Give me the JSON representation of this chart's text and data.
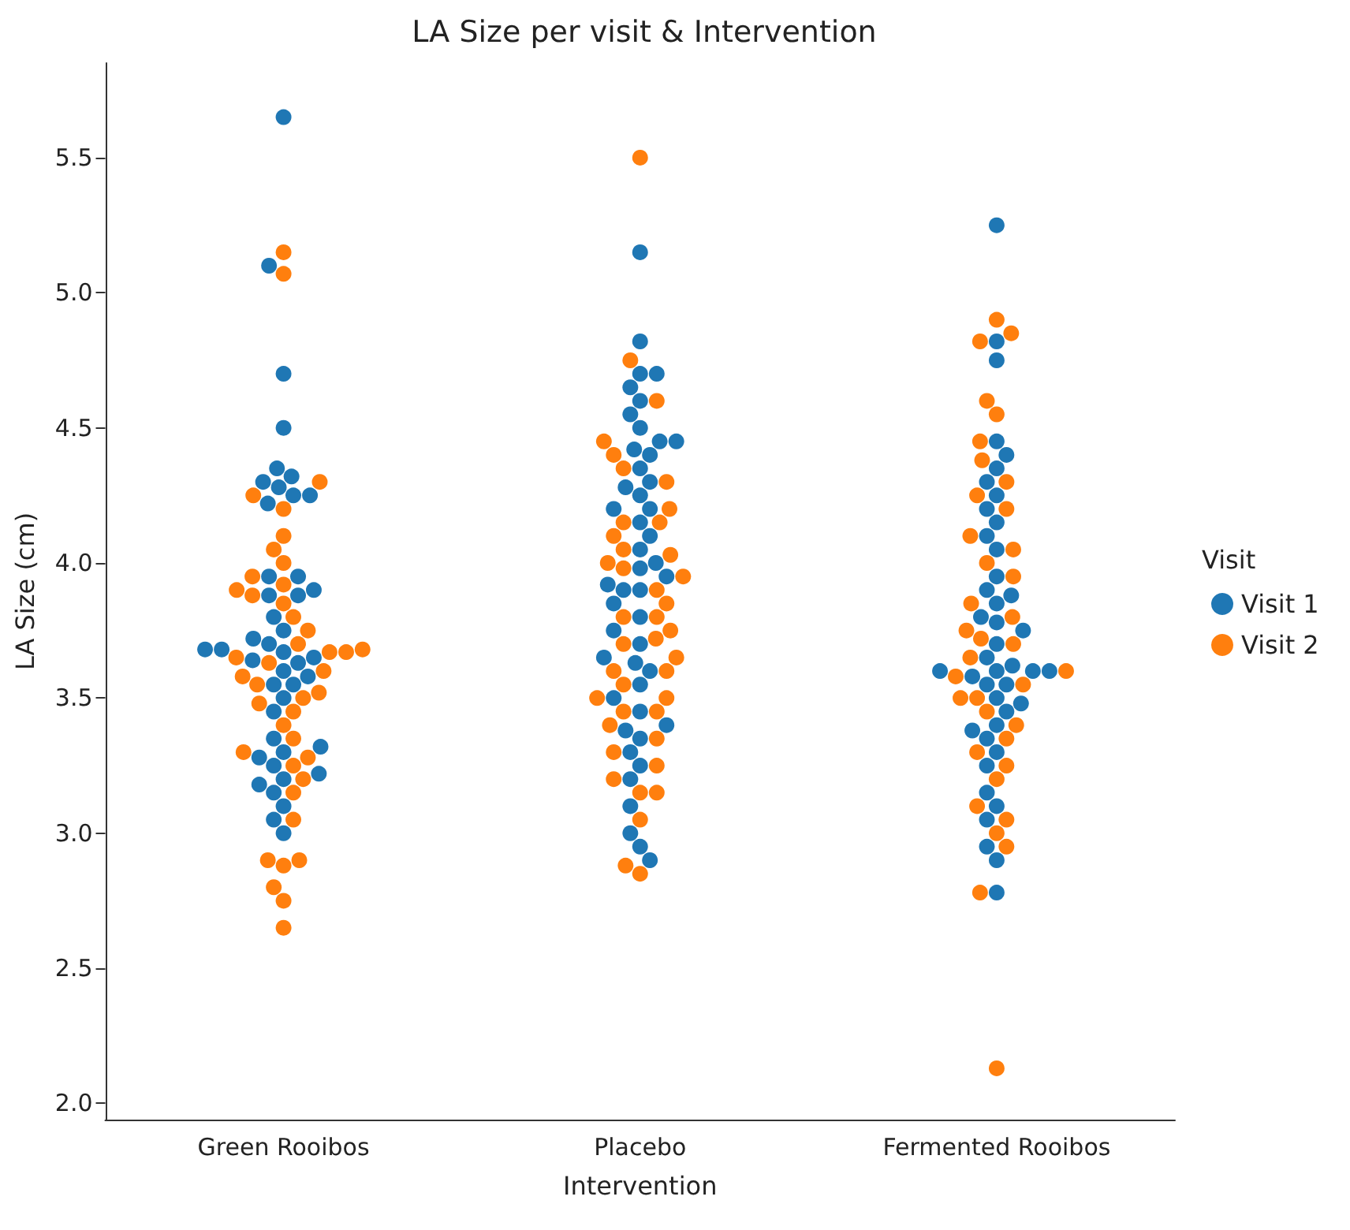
{
  "chart_data": {
    "type": "scatter",
    "title": "LA Size per visit & Intervention",
    "xlabel": "Intervention",
    "ylabel": "LA Size (cm)",
    "legend_title": "Visit",
    "legend": "right",
    "marker": "circle",
    "categories": [
      "Green Rooibos",
      "Placebo",
      "Fermented Rooibos"
    ],
    "ylim": [
      1.94,
      5.85
    ],
    "yticks": [
      {
        "value": 2,
        "label": "2.0"
      },
      {
        "value": 2.5,
        "label": "2.5"
      },
      {
        "value": 3,
        "label": "3.0"
      },
      {
        "value": 3.5,
        "label": "3.5"
      },
      {
        "value": 4,
        "label": "4.0"
      },
      {
        "value": 4.5,
        "label": "4.5"
      },
      {
        "value": 5,
        "label": "5.0"
      },
      {
        "value": 5.5,
        "label": "5.5"
      }
    ],
    "series": [
      {
        "name": "Visit 1",
        "color": "#1f77b4",
        "x": [
          "Green Rooibos",
          "Green Rooibos",
          "Green Rooibos",
          "Green Rooibos",
          "Green Rooibos",
          "Green Rooibos",
          "Green Rooibos",
          "Green Rooibos",
          "Green Rooibos",
          "Green Rooibos",
          "Green Rooibos",
          "Green Rooibos",
          "Green Rooibos",
          "Green Rooibos",
          "Green Rooibos",
          "Green Rooibos",
          "Green Rooibos",
          "Green Rooibos",
          "Green Rooibos",
          "Green Rooibos",
          "Green Rooibos",
          "Green Rooibos",
          "Green Rooibos",
          "Green Rooibos",
          "Green Rooibos",
          "Green Rooibos",
          "Green Rooibos",
          "Green Rooibos",
          "Green Rooibos",
          "Green Rooibos",
          "Green Rooibos",
          "Green Rooibos",
          "Green Rooibos",
          "Green Rooibos",
          "Green Rooibos",
          "Green Rooibos",
          "Green Rooibos",
          "Green Rooibos",
          "Green Rooibos",
          "Green Rooibos",
          "Green Rooibos",
          "Green Rooibos",
          "Green Rooibos",
          "Green Rooibos",
          "Placebo",
          "Placebo",
          "Placebo",
          "Placebo",
          "Placebo",
          "Placebo",
          "Placebo",
          "Placebo",
          "Placebo",
          "Placebo",
          "Placebo",
          "Placebo",
          "Placebo",
          "Placebo",
          "Placebo",
          "Placebo",
          "Placebo",
          "Placebo",
          "Placebo",
          "Placebo",
          "Placebo",
          "Placebo",
          "Placebo",
          "Placebo",
          "Placebo",
          "Placebo",
          "Placebo",
          "Placebo",
          "Placebo",
          "Placebo",
          "Placebo",
          "Placebo",
          "Placebo",
          "Placebo",
          "Placebo",
          "Placebo",
          "Placebo",
          "Placebo",
          "Placebo",
          "Placebo",
          "Placebo",
          "Placebo",
          "Placebo",
          "Placebo",
          "Placebo",
          "Placebo",
          "Placebo",
          "Fermented Rooibos",
          "Fermented Rooibos",
          "Fermented Rooibos",
          "Fermented Rooibos",
          "Fermented Rooibos",
          "Fermented Rooibos",
          "Fermented Rooibos",
          "Fermented Rooibos",
          "Fermented Rooibos",
          "Fermented Rooibos",
          "Fermented Rooibos",
          "Fermented Rooibos",
          "Fermented Rooibos",
          "Fermented Rooibos",
          "Fermented Rooibos",
          "Fermented Rooibos",
          "Fermented Rooibos",
          "Fermented Rooibos",
          "Fermented Rooibos",
          "Fermented Rooibos",
          "Fermented Rooibos",
          "Fermented Rooibos",
          "Fermented Rooibos",
          "Fermented Rooibos",
          "Fermented Rooibos",
          "Fermented Rooibos",
          "Fermented Rooibos",
          "Fermented Rooibos",
          "Fermented Rooibos",
          "Fermented Rooibos",
          "Fermented Rooibos",
          "Fermented Rooibos",
          "Fermented Rooibos",
          "Fermented Rooibos",
          "Fermented Rooibos",
          "Fermented Rooibos",
          "Fermented Rooibos",
          "Fermented Rooibos",
          "Fermented Rooibos",
          "Fermented Rooibos",
          "Fermented Rooibos",
          "Fermented Rooibos",
          "Fermented Rooibos"
        ],
        "values": [
          5.65,
          5.1,
          4.7,
          4.5,
          4.35,
          4.32,
          4.3,
          4.28,
          4.25,
          4.25,
          4.22,
          3.95,
          3.95,
          3.9,
          3.88,
          3.88,
          3.8,
          3.75,
          3.72,
          3.7,
          3.68,
          3.68,
          3.67,
          3.65,
          3.64,
          3.63,
          3.6,
          3.58,
          3.55,
          3.55,
          3.5,
          3.45,
          3.35,
          3.32,
          3.3,
          3.28,
          3.25,
          3.22,
          3.2,
          3.18,
          3.15,
          3.1,
          3.05,
          3.0,
          5.15,
          4.82,
          4.7,
          4.7,
          4.65,
          4.6,
          4.55,
          4.5,
          4.45,
          4.45,
          4.42,
          4.4,
          4.35,
          4.3,
          4.28,
          4.25,
          4.2,
          4.2,
          4.15,
          4.1,
          4.05,
          4.0,
          3.98,
          3.95,
          3.92,
          3.9,
          3.9,
          3.85,
          3.8,
          3.75,
          3.7,
          3.65,
          3.63,
          3.6,
          3.55,
          3.5,
          3.45,
          3.4,
          3.38,
          3.35,
          3.3,
          3.25,
          3.2,
          3.1,
          3.0,
          2.95,
          2.9,
          5.25,
          4.82,
          4.75,
          4.45,
          4.4,
          4.35,
          4.3,
          4.25,
          4.2,
          4.15,
          4.1,
          4.05,
          3.95,
          3.9,
          3.88,
          3.85,
          3.8,
          3.78,
          3.75,
          3.7,
          3.65,
          3.62,
          3.6,
          3.6,
          3.6,
          3.6,
          3.58,
          3.55,
          3.55,
          3.5,
          3.48,
          3.45,
          3.4,
          3.38,
          3.35,
          3.3,
          3.25,
          3.15,
          3.1,
          3.05,
          2.95,
          2.9,
          2.78
        ]
      },
      {
        "name": "Visit 2",
        "color": "#ff7f0e",
        "x": [
          "Green Rooibos",
          "Green Rooibos",
          "Green Rooibos",
          "Green Rooibos",
          "Green Rooibos",
          "Green Rooibos",
          "Green Rooibos",
          "Green Rooibos",
          "Green Rooibos",
          "Green Rooibos",
          "Green Rooibos",
          "Green Rooibos",
          "Green Rooibos",
          "Green Rooibos",
          "Green Rooibos",
          "Green Rooibos",
          "Green Rooibos",
          "Green Rooibos",
          "Green Rooibos",
          "Green Rooibos",
          "Green Rooibos",
          "Green Rooibos",
          "Green Rooibos",
          "Green Rooibos",
          "Green Rooibos",
          "Green Rooibos",
          "Green Rooibos",
          "Green Rooibos",
          "Green Rooibos",
          "Green Rooibos",
          "Green Rooibos",
          "Green Rooibos",
          "Green Rooibos",
          "Green Rooibos",
          "Green Rooibos",
          "Green Rooibos",
          "Green Rooibos",
          "Green Rooibos",
          "Green Rooibos",
          "Green Rooibos",
          "Green Rooibos",
          "Green Rooibos",
          "Placebo",
          "Placebo",
          "Placebo",
          "Placebo",
          "Placebo",
          "Placebo",
          "Placebo",
          "Placebo",
          "Placebo",
          "Placebo",
          "Placebo",
          "Placebo",
          "Placebo",
          "Placebo",
          "Placebo",
          "Placebo",
          "Placebo",
          "Placebo",
          "Placebo",
          "Placebo",
          "Placebo",
          "Placebo",
          "Placebo",
          "Placebo",
          "Placebo",
          "Placebo",
          "Placebo",
          "Placebo",
          "Placebo",
          "Placebo",
          "Placebo",
          "Placebo",
          "Placebo",
          "Placebo",
          "Placebo",
          "Placebo",
          "Placebo",
          "Placebo",
          "Placebo",
          "Placebo",
          "Placebo",
          "Fermented Rooibos",
          "Fermented Rooibos",
          "Fermented Rooibos",
          "Fermented Rooibos",
          "Fermented Rooibos",
          "Fermented Rooibos",
          "Fermented Rooibos",
          "Fermented Rooibos",
          "Fermented Rooibos",
          "Fermented Rooibos",
          "Fermented Rooibos",
          "Fermented Rooibos",
          "Fermented Rooibos",
          "Fermented Rooibos",
          "Fermented Rooibos",
          "Fermented Rooibos",
          "Fermented Rooibos",
          "Fermented Rooibos",
          "Fermented Rooibos",
          "Fermented Rooibos",
          "Fermented Rooibos",
          "Fermented Rooibos",
          "Fermented Rooibos",
          "Fermented Rooibos",
          "Fermented Rooibos",
          "Fermented Rooibos",
          "Fermented Rooibos",
          "Fermented Rooibos",
          "Fermented Rooibos",
          "Fermented Rooibos",
          "Fermented Rooibos",
          "Fermented Rooibos",
          "Fermented Rooibos",
          "Fermented Rooibos",
          "Fermented Rooibos",
          "Fermented Rooibos",
          "Fermented Rooibos"
        ],
        "values": [
          5.15,
          5.07,
          4.3,
          4.25,
          4.2,
          4.1,
          4.05,
          4.0,
          3.95,
          3.92,
          3.9,
          3.88,
          3.85,
          3.8,
          3.75,
          3.7,
          3.68,
          3.67,
          3.67,
          3.65,
          3.63,
          3.6,
          3.58,
          3.55,
          3.52,
          3.5,
          3.48,
          3.45,
          3.4,
          3.35,
          3.3,
          3.28,
          3.25,
          3.2,
          3.15,
          3.05,
          2.9,
          2.9,
          2.88,
          2.8,
          2.75,
          2.65,
          5.5,
          4.75,
          4.6,
          4.45,
          4.4,
          4.35,
          4.3,
          4.2,
          4.15,
          4.15,
          4.1,
          4.05,
          4.03,
          4.0,
          3.98,
          3.95,
          3.9,
          3.85,
          3.8,
          3.8,
          3.75,
          3.72,
          3.7,
          3.65,
          3.6,
          3.6,
          3.55,
          3.5,
          3.5,
          3.45,
          3.45,
          3.4,
          3.35,
          3.3,
          3.25,
          3.2,
          3.15,
          3.15,
          3.05,
          2.88,
          2.85,
          4.9,
          4.85,
          4.82,
          4.6,
          4.55,
          4.45,
          4.38,
          4.3,
          4.25,
          4.2,
          4.1,
          4.05,
          4.0,
          3.95,
          3.85,
          3.8,
          3.75,
          3.72,
          3.7,
          3.65,
          3.6,
          3.58,
          3.55,
          3.5,
          3.5,
          3.45,
          3.4,
          3.35,
          3.3,
          3.25,
          3.2,
          3.1,
          3.05,
          3.0,
          2.95,
          2.78,
          2.13
        ]
      }
    ]
  }
}
